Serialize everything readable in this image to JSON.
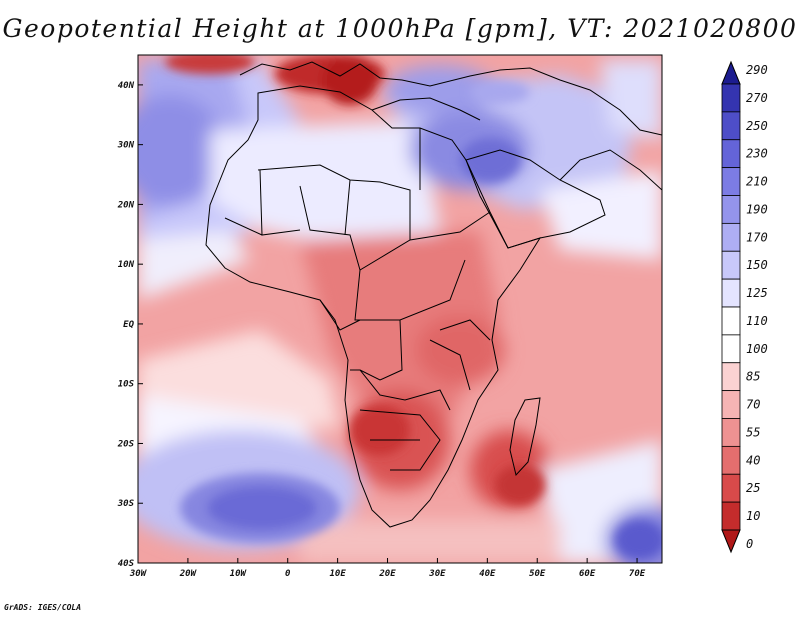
{
  "title": "Geopotential Height at 1000hPa [gpm], VT: 2021020800",
  "credit": "GrADS: IGES/COLA",
  "map": {
    "lon_labels": [
      "30W",
      "20W",
      "10W",
      "0",
      "10E",
      "20E",
      "30E",
      "40E",
      "50E",
      "60E",
      "70E"
    ],
    "lat_labels": [
      "40N",
      "30N",
      "20N",
      "10N",
      "EQ",
      "10S",
      "20S",
      "30S",
      "40S"
    ],
    "lon_range": [
      -30,
      75
    ],
    "lat_range": [
      -40,
      45
    ]
  },
  "colorbar": {
    "levels": [
      "0",
      "10",
      "25",
      "40",
      "55",
      "70",
      "85",
      "100",
      "110",
      "125",
      "150",
      "170",
      "190",
      "210",
      "230",
      "250",
      "270",
      "290"
    ],
    "colors": [
      "#b01818",
      "#c42c2c",
      "#d84a4a",
      "#e46e6e",
      "#ee9292",
      "#f6b4b4",
      "#fbd2d2",
      "#ffffff",
      "#ffffff",
      "#e4e4ff",
      "#c8c8fa",
      "#aeaef4",
      "#9494ec",
      "#7c7ce4",
      "#6464d8",
      "#4e4ec8",
      "#3434b0",
      "#1c1c90"
    ]
  },
  "colors": {
    "land_line": "#000000",
    "background": "#ffffff"
  }
}
